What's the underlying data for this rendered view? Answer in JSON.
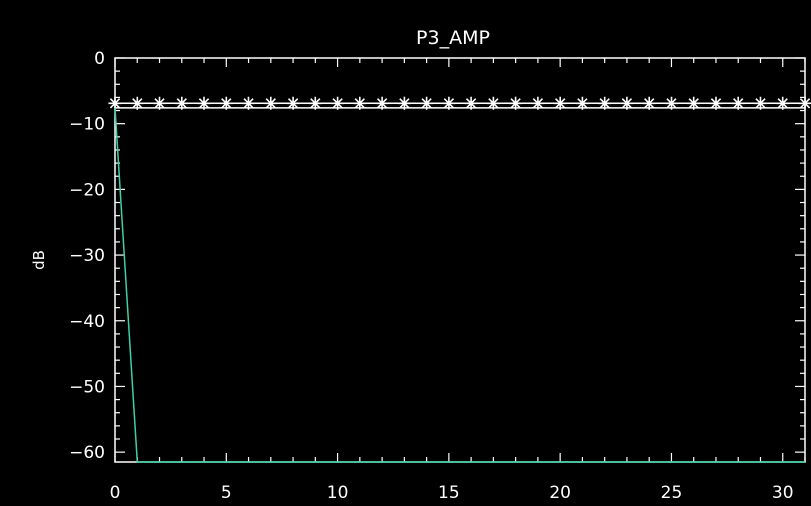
{
  "chart_data": {
    "type": "line",
    "title": "P3_AMP",
    "xlabel": "",
    "ylabel": "dB",
    "xlim": [
      0,
      31
    ],
    "ylim": [
      -61.5,
      0
    ],
    "x_ticks": [
      0,
      5,
      10,
      15,
      20,
      25,
      30
    ],
    "y_ticks": [
      0,
      -10,
      -20,
      -30,
      -40,
      -50,
      -60
    ],
    "grid": false,
    "series": [
      {
        "color": "#ffffff",
        "marker": "asterisk",
        "x": [
          0,
          1,
          2,
          3,
          4,
          5,
          6,
          7,
          8,
          9,
          10,
          11,
          12,
          13,
          14,
          15,
          16,
          17,
          18,
          19,
          20,
          21,
          22,
          23,
          24,
          25,
          26,
          27,
          28,
          29,
          30,
          31
        ],
        "values": [
          -6.9,
          -6.9,
          -6.9,
          -6.9,
          -6.9,
          -6.9,
          -6.9,
          -6.9,
          -6.9,
          -6.9,
          -6.9,
          -6.9,
          -6.9,
          -6.9,
          -6.9,
          -6.9,
          -6.9,
          -6.9,
          -6.9,
          -6.9,
          -6.9,
          -6.9,
          -6.9,
          -6.9,
          -6.9,
          -6.9,
          -6.9,
          -6.9,
          -6.9,
          -6.9,
          -6.9,
          -6.9
        ]
      },
      {
        "color": "#ffffff",
        "marker": "none",
        "x": [
          0,
          31
        ],
        "values": [
          -7.6,
          -7.6
        ]
      },
      {
        "color": "#3fd0a8",
        "marker": "none",
        "x": [
          0,
          1,
          2,
          3,
          4,
          5,
          6,
          7,
          8,
          9,
          10,
          11,
          12,
          13,
          14,
          15,
          16,
          17,
          18,
          19,
          20,
          21,
          22,
          23,
          24,
          25,
          26,
          27,
          28,
          29,
          30,
          31
        ],
        "values": [
          -7.6,
          -61.5,
          -61.5,
          -61.5,
          -61.5,
          -61.5,
          -61.5,
          -61.5,
          -61.5,
          -61.5,
          -61.5,
          -61.5,
          -61.5,
          -61.5,
          -61.5,
          -61.5,
          -61.5,
          -61.5,
          -61.5,
          -61.5,
          -61.5,
          -61.5,
          -61.5,
          -61.5,
          -61.5,
          -61.5,
          -61.5,
          -61.5,
          -61.5,
          -61.5,
          -61.5,
          -61.5
        ]
      }
    ]
  }
}
